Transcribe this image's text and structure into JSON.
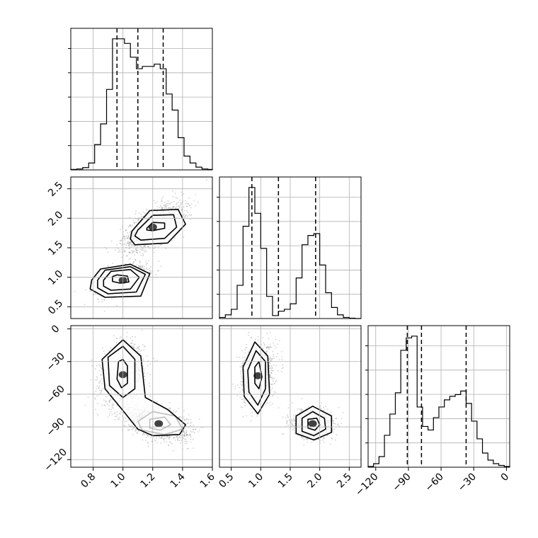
{
  "chart_data": {
    "type": "corner",
    "grid": true,
    "colors": {
      "points": "#7f7f7f",
      "lines": "#000000"
    },
    "parameters": [
      {
        "range": [
          0.65,
          1.6
        ],
        "ticks": [
          0.8,
          1.0,
          1.2,
          1.4,
          1.6
        ],
        "tick_labels": [
          "0.8",
          "1.0",
          "1.2",
          "1.4",
          "1.6"
        ],
        "quantiles": [
          0.96,
          1.1,
          1.27
        ],
        "histogram": {
          "bin_edges": [
            0.65,
            0.69,
            0.73,
            0.77,
            0.81,
            0.85,
            0.89,
            0.93,
            0.97,
            1.01,
            1.05,
            1.09,
            1.13,
            1.17,
            1.21,
            1.25,
            1.29,
            1.33,
            1.37,
            1.41,
            1.45,
            1.49,
            1.53,
            1.57,
            1.6
          ],
          "counts": [
            1,
            2,
            5,
            15,
            55,
            100,
            175,
            285,
            285,
            275,
            245,
            220,
            225,
            225,
            230,
            220,
            165,
            130,
            70,
            30,
            15,
            6,
            2,
            1
          ]
        }
      },
      {
        "range": [
          0.3,
          2.7
        ],
        "ticks": [
          0.5,
          1.0,
          1.5,
          2.0,
          2.5
        ],
        "tick_labels": [
          "0.5",
          "1.0",
          "1.5",
          "2.0",
          "2.5"
        ],
        "quantiles": [
          0.85,
          1.3,
          1.93
        ],
        "histogram": {
          "bin_edges": [
            0.3,
            0.4,
            0.5,
            0.6,
            0.7,
            0.8,
            0.9,
            1.0,
            1.1,
            1.2,
            1.3,
            1.4,
            1.5,
            1.6,
            1.7,
            1.8,
            1.9,
            2.0,
            2.1,
            2.2,
            2.3,
            2.4,
            2.5,
            2.6,
            2.7
          ],
          "counts": [
            3,
            10,
            25,
            90,
            250,
            355,
            285,
            190,
            60,
            8,
            20,
            25,
            40,
            110,
            200,
            225,
            230,
            145,
            70,
            30,
            10,
            3,
            1,
            0
          ]
        }
      },
      {
        "range": [
          -127,
          3
        ],
        "ticks": [
          -120,
          -90,
          -60,
          -30,
          0
        ],
        "tick_labels": [
          "−120",
          "−90",
          "−60",
          "−30",
          "0"
        ],
        "quantiles": [
          -91,
          -78,
          -37
        ],
        "histogram": {
          "bin_edges": [
            -127,
            -122,
            -117,
            -112,
            -107,
            -102,
            -97,
            -92,
            -87,
            -82,
            -77,
            -72,
            -67,
            -62,
            -57,
            -52,
            -47,
            -42,
            -37,
            -32,
            -27,
            -22,
            -17,
            -12,
            -7,
            -2,
            3
          ],
          "counts": [
            2,
            10,
            30,
            90,
            150,
            210,
            330,
            365,
            370,
            170,
            115,
            105,
            140,
            170,
            190,
            200,
            205,
            215,
            180,
            130,
            80,
            40,
            20,
            10,
            5,
            2
          ]
        }
      }
    ],
    "panels_2d": [
      {
        "x_param": 0,
        "y_param": 1,
        "modes": [
          {
            "center": [
              1.0,
              0.95
            ],
            "sd": [
              0.08,
              0.12
            ],
            "rho": 0.5,
            "weight": 0.5
          },
          {
            "center": [
              1.2,
              1.85
            ],
            "sd": [
              0.1,
              0.2
            ],
            "rho": 0.65,
            "weight": 0.5
          }
        ],
        "contours": [
          [
            [
              0.93,
              1.01
            ],
            [
              0.96,
              1.04
            ],
            [
              1.03,
              1.02
            ],
            [
              1.04,
              0.92
            ],
            [
              0.98,
              0.9
            ],
            [
              0.93,
              0.93
            ]
          ],
          [
            [
              0.87,
              0.95
            ],
            [
              0.92,
              1.1
            ],
            [
              1.05,
              1.13
            ],
            [
              1.11,
              1.0
            ],
            [
              1.05,
              0.8
            ],
            [
              0.92,
              0.78
            ],
            [
              0.87,
              0.85
            ]
          ],
          [
            [
              0.83,
              0.95
            ],
            [
              0.88,
              1.12
            ],
            [
              1.05,
              1.18
            ],
            [
              1.15,
              1.05
            ],
            [
              1.09,
              0.75
            ],
            [
              0.9,
              0.72
            ],
            [
              0.83,
              0.82
            ]
          ],
          [
            [
              0.79,
              0.95
            ],
            [
              0.85,
              1.14
            ],
            [
              1.05,
              1.22
            ],
            [
              1.18,
              1.06
            ],
            [
              1.12,
              0.68
            ],
            [
              0.88,
              0.66
            ],
            [
              0.78,
              0.8
            ]
          ],
          [
            [
              1.16,
              1.83
            ],
            [
              1.2,
              1.93
            ],
            [
              1.28,
              1.92
            ],
            [
              1.28,
              1.83
            ],
            [
              1.2,
              1.79
            ],
            [
              1.16,
              1.8
            ]
          ],
          [
            [
              1.1,
              1.8
            ],
            [
              1.2,
              2.05
            ],
            [
              1.34,
              2.06
            ],
            [
              1.36,
              1.85
            ],
            [
              1.28,
              1.66
            ],
            [
              1.12,
              1.63
            ],
            [
              1.08,
              1.7
            ]
          ],
          [
            [
              1.06,
              1.78
            ],
            [
              1.18,
              2.13
            ],
            [
              1.37,
              2.15
            ],
            [
              1.42,
              1.9
            ],
            [
              1.3,
              1.58
            ],
            [
              1.08,
              1.55
            ],
            [
              1.05,
              1.65
            ]
          ]
        ]
      },
      {
        "x_param": 0,
        "y_param": 2,
        "modes": [
          {
            "center": [
              1.0,
              -42
            ],
            "sd": [
              0.07,
              13
            ],
            "rho": 0.2,
            "weight": 0.5
          },
          {
            "center": [
              1.24,
              -87
            ],
            "sd": [
              0.1,
              7
            ],
            "rho": -0.4,
            "weight": 0.5
          }
        ],
        "contours": [
          [
            [
              0.97,
              -30
            ],
            [
              1.0,
              -28
            ],
            [
              1.03,
              -34
            ],
            [
              1.03,
              -50
            ],
            [
              0.99,
              -54
            ],
            [
              0.96,
              -46
            ]
          ],
          [
            [
              0.9,
              -26
            ],
            [
              1.0,
              -16
            ],
            [
              1.08,
              -28
            ],
            [
              1.08,
              -55
            ],
            [
              1.0,
              -63
            ],
            [
              0.91,
              -52
            ]
          ],
          [
            [
              0.86,
              -28
            ],
            [
              1.0,
              -10
            ],
            [
              1.12,
              -25
            ],
            [
              1.15,
              -63
            ],
            [
              1.3,
              -74
            ],
            [
              1.42,
              -88
            ],
            [
              1.38,
              -97
            ],
            [
              1.2,
              -98
            ],
            [
              1.1,
              -92
            ],
            [
              1.0,
              -75
            ],
            [
              0.88,
              -55
            ]
          ],
          [
            [
              1.18,
              -83
            ],
            [
              1.28,
              -81
            ],
            [
              1.32,
              -88
            ],
            [
              1.25,
              -93
            ],
            [
              1.18,
              -91
            ]
          ],
          [
            [
              1.1,
              -85
            ],
            [
              1.2,
              -76
            ],
            [
              1.35,
              -80
            ],
            [
              1.4,
              -92
            ],
            [
              1.28,
              -97
            ],
            [
              1.13,
              -93
            ]
          ]
        ]
      },
      {
        "x_param": 1,
        "y_param": 2,
        "modes": [
          {
            "center": [
              0.95,
              -43
            ],
            "sd": [
              0.13,
              13
            ],
            "rho": 0.2,
            "weight": 0.5
          },
          {
            "center": [
              1.88,
              -87
            ],
            "sd": [
              0.16,
              6
            ],
            "rho": 0.0,
            "weight": 0.5
          }
        ],
        "contours": [
          [
            [
              0.9,
              -35
            ],
            [
              0.97,
              -30
            ],
            [
              1.02,
              -44
            ],
            [
              0.97,
              -55
            ],
            [
              0.9,
              -50
            ]
          ],
          [
            [
              0.78,
              -38
            ],
            [
              0.92,
              -20
            ],
            [
              1.08,
              -30
            ],
            [
              1.08,
              -55
            ],
            [
              0.95,
              -70
            ],
            [
              0.8,
              -58
            ]
          ],
          [
            [
              0.7,
              -35
            ],
            [
              0.9,
              -12
            ],
            [
              1.12,
              -25
            ],
            [
              1.15,
              -60
            ],
            [
              0.95,
              -78
            ],
            [
              0.72,
              -62
            ]
          ],
          [
            [
              1.8,
              -83
            ],
            [
              1.95,
              -82
            ],
            [
              2.0,
              -88
            ],
            [
              1.92,
              -93
            ],
            [
              1.8,
              -91
            ]
          ],
          [
            [
              1.7,
              -82
            ],
            [
              1.88,
              -76
            ],
            [
              2.08,
              -82
            ],
            [
              2.1,
              -92
            ],
            [
              1.9,
              -98
            ],
            [
              1.7,
              -94
            ]
          ],
          [
            [
              1.6,
              -80
            ],
            [
              1.88,
              -71
            ],
            [
              2.2,
              -80
            ],
            [
              2.2,
              -95
            ],
            [
              1.9,
              -102
            ],
            [
              1.6,
              -96
            ]
          ]
        ]
      }
    ]
  }
}
